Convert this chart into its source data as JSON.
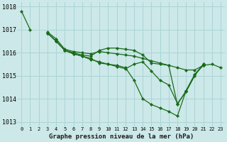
{
  "title": "Graphe pression niveau de la mer (hPa)",
  "background_color": "#cce8e8",
  "grid_color": "#aad4d4",
  "line_color": "#1a6b1a",
  "marker_color": "#1a6b1a",
  "xlim": [
    -0.5,
    23.5
  ],
  "ylim": [
    1012.8,
    1018.2
  ],
  "yticks": [
    1013,
    1014,
    1015,
    1016,
    1017,
    1018
  ],
  "xticks": [
    0,
    1,
    2,
    3,
    4,
    5,
    6,
    7,
    8,
    9,
    10,
    11,
    12,
    13,
    14,
    15,
    16,
    17,
    18,
    19,
    20,
    21,
    22,
    23
  ],
  "lines": [
    [
      1017.8,
      1017.0,
      null,
      null,
      null,
      null,
      null,
      null,
      null,
      null,
      null,
      null,
      null,
      null,
      null,
      null,
      null,
      null,
      null,
      null,
      null,
      null,
      null,
      null
    ],
    [
      null,
      null,
      null,
      1016.9,
      1016.6,
      1016.15,
      1016.05,
      1016.0,
      1015.95,
      1016.05,
      1016.0,
      1015.95,
      1015.9,
      1015.85,
      1015.75,
      1015.65,
      1015.55,
      1015.45,
      1015.35,
      1015.25,
      1015.25,
      1015.45,
      null,
      null
    ],
    [
      null,
      null,
      null,
      1016.85,
      1016.5,
      1016.1,
      1015.95,
      1015.85,
      1015.7,
      1015.6,
      1015.5,
      1015.4,
      1015.3,
      1015.5,
      1015.6,
      1015.2,
      1014.8,
      1014.6,
      1013.8,
      1014.3,
      1015.0,
      1015.5,
      null,
      null
    ],
    [
      null,
      null,
      null,
      1016.85,
      1016.5,
      1016.1,
      1015.95,
      1015.85,
      1015.75,
      1015.55,
      1015.5,
      1015.45,
      1015.35,
      1014.8,
      1014.0,
      1013.75,
      1013.6,
      1013.45,
      1013.25,
      1014.35,
      1015.05,
      1015.5,
      null,
      null
    ],
    [
      null,
      null,
      null,
      1016.85,
      1016.5,
      1016.1,
      1016.0,
      1015.9,
      1015.85,
      1016.1,
      1016.2,
      1016.2,
      1016.15,
      1016.1,
      1015.9,
      1015.55,
      1015.5,
      1015.45,
      1013.75,
      1014.35,
      1015.05,
      1015.45,
      1015.5,
      1015.35
    ]
  ]
}
